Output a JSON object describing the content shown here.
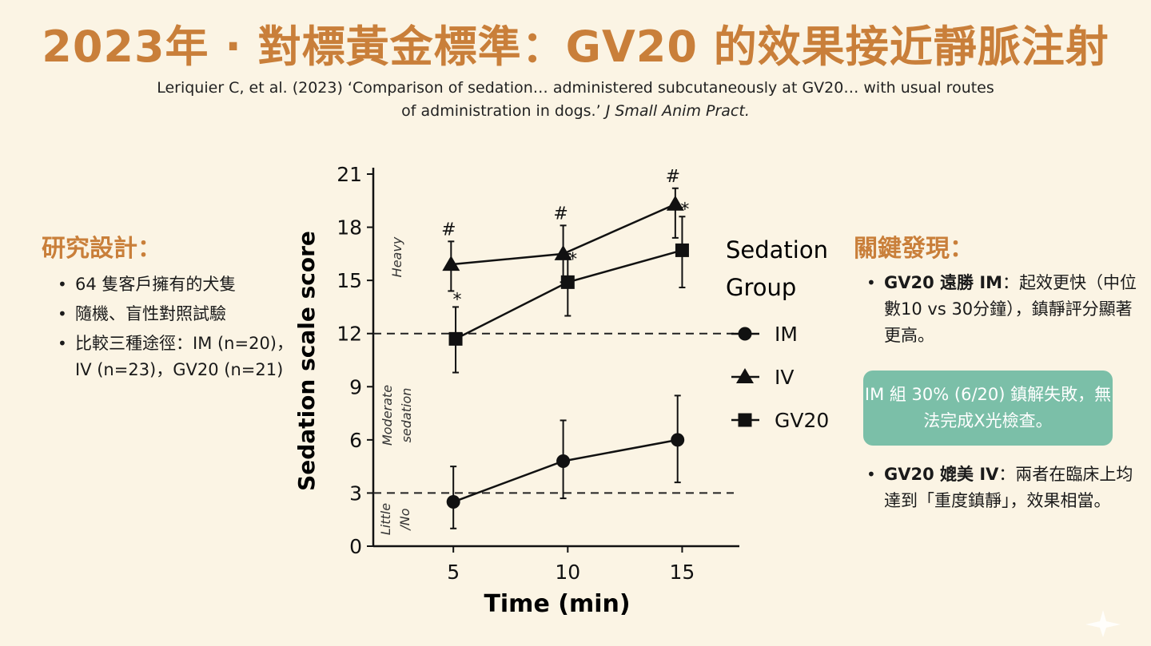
{
  "title": "2023年 · 對標黃金標準：GV20 的效果接近靜脈注射",
  "citation": {
    "text": "Leriquier C, et al. (2023) ‘Comparison of sedation… administered subcutaneously at GV20… with usual routes of administration in dogs.’",
    "journal": "J Small Anim Pract."
  },
  "design": {
    "heading": "研究設計：",
    "items": [
      "64 隻客戶擁有的犬隻",
      "隨機、盲性對照試驗",
      "比較三種途徑：IM (n=20)，IV (n=23)，GV20 (n=21)"
    ]
  },
  "findings": {
    "heading": "關鍵發現：",
    "item1_bold": "GV20 遠勝 IM",
    "item1_text": "：起效更快（中位數10 vs 30分鐘），鎮靜評分顯著更高。",
    "callout": "IM 組 30% (6/20) 鎮解失敗，無法完成X光檢查。",
    "item2_bold": "GV20 媲美 IV",
    "item2_text": "：兩者在臨床上均達到「重度鎮靜」，效果相當。"
  },
  "chart_data": {
    "type": "line",
    "xlabel": "Time (min)",
    "ylabel": "Sedation scale score",
    "x": [
      5,
      10,
      15
    ],
    "xticks": [
      5,
      10,
      15
    ],
    "xlim": [
      1.5,
      17.5
    ],
    "ylim": [
      0,
      21
    ],
    "yticks": [
      0,
      3,
      6,
      9,
      12,
      15,
      18,
      21
    ],
    "legend_title": "Sedation Group",
    "legend_position": "right",
    "series": [
      {
        "name": "IM",
        "marker": "circle",
        "x": [
          5,
          9.8,
          14.8
        ],
        "values": [
          2.5,
          4.8,
          6.0
        ],
        "err_low": [
          1.0,
          2.7,
          3.6
        ],
        "err_high": [
          4.5,
          7.1,
          8.5
        ],
        "annotations": [
          "",
          "",
          ""
        ]
      },
      {
        "name": "IV",
        "marker": "triangle",
        "x": [
          4.9,
          9.8,
          14.7
        ],
        "values": [
          15.9,
          16.5,
          19.3
        ],
        "err_low": [
          14.4,
          14.9,
          17.4
        ],
        "err_high": [
          17.2,
          18.1,
          20.2
        ],
        "annotations": [
          "#",
          "#",
          "#"
        ]
      },
      {
        "name": "GV20",
        "marker": "square",
        "x": [
          5.1,
          10.0,
          15.0
        ],
        "values": [
          11.7,
          14.9,
          16.7
        ],
        "err_low": [
          9.8,
          13.0,
          14.6
        ],
        "err_high": [
          13.5,
          16.5,
          18.6
        ],
        "annotations": [
          "*",
          "*",
          "*"
        ]
      }
    ],
    "reference_lines": [
      3,
      12
    ],
    "zone_labels": [
      "Heavy",
      "Moderate sedation",
      "Little /No"
    ]
  }
}
